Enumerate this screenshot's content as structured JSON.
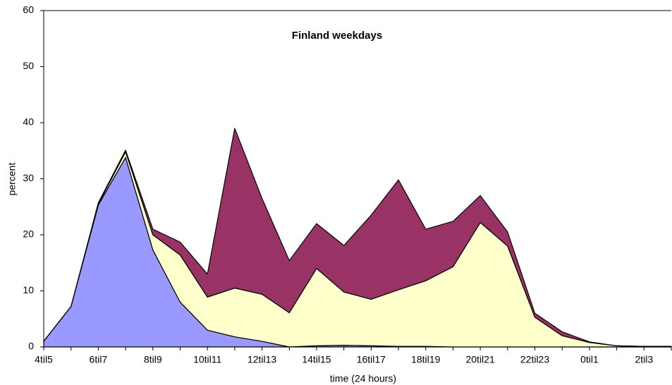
{
  "chart_data": {
    "type": "stacked_area",
    "title": "Finland weekdays",
    "x_label": "time (24 hours)",
    "y_label": "percent",
    "categories": [
      "4til5",
      null,
      "6til7",
      null,
      "8til9",
      null,
      "10til11",
      null,
      "12til13",
      null,
      "14til15",
      null,
      "16til17",
      null,
      "18til19",
      null,
      "20til21",
      null,
      "22til23",
      null,
      "0til1",
      null,
      "2til3",
      null
    ],
    "series": [
      {
        "color": "#9999ff",
        "values": [
          1,
          7.2,
          25.3,
          33.8,
          17.3,
          8,
          3,
          1.8,
          1,
          0,
          0.2,
          0.3,
          0.2,
          0.1,
          0.1,
          0,
          0,
          0,
          0,
          0,
          0,
          0,
          0,
          0
        ]
      },
      {
        "color": "#ffffcc",
        "values": [
          0,
          0,
          0.2,
          1,
          2.7,
          8.4,
          5.9,
          8.7,
          8.4,
          6.1,
          13.8,
          9.5,
          8.3,
          10.1,
          11.7,
          14.3,
          22.2,
          18,
          5.3,
          2,
          0.8,
          0.2,
          0.1,
          0.1
        ]
      },
      {
        "color": "#993366",
        "values": [
          0,
          0,
          0.2,
          0.3,
          1,
          2.3,
          4.1,
          28.5,
          17.1,
          9.3,
          8,
          8.3,
          15,
          19.6,
          9.2,
          8.1,
          4.8,
          2.5,
          0.7,
          0.7,
          0.1,
          0,
          0,
          0
        ]
      }
    ],
    "ylim": [
      0,
      60
    ],
    "yticks": [
      0,
      10,
      20,
      30,
      40,
      50,
      60
    ],
    "grid": false
  }
}
